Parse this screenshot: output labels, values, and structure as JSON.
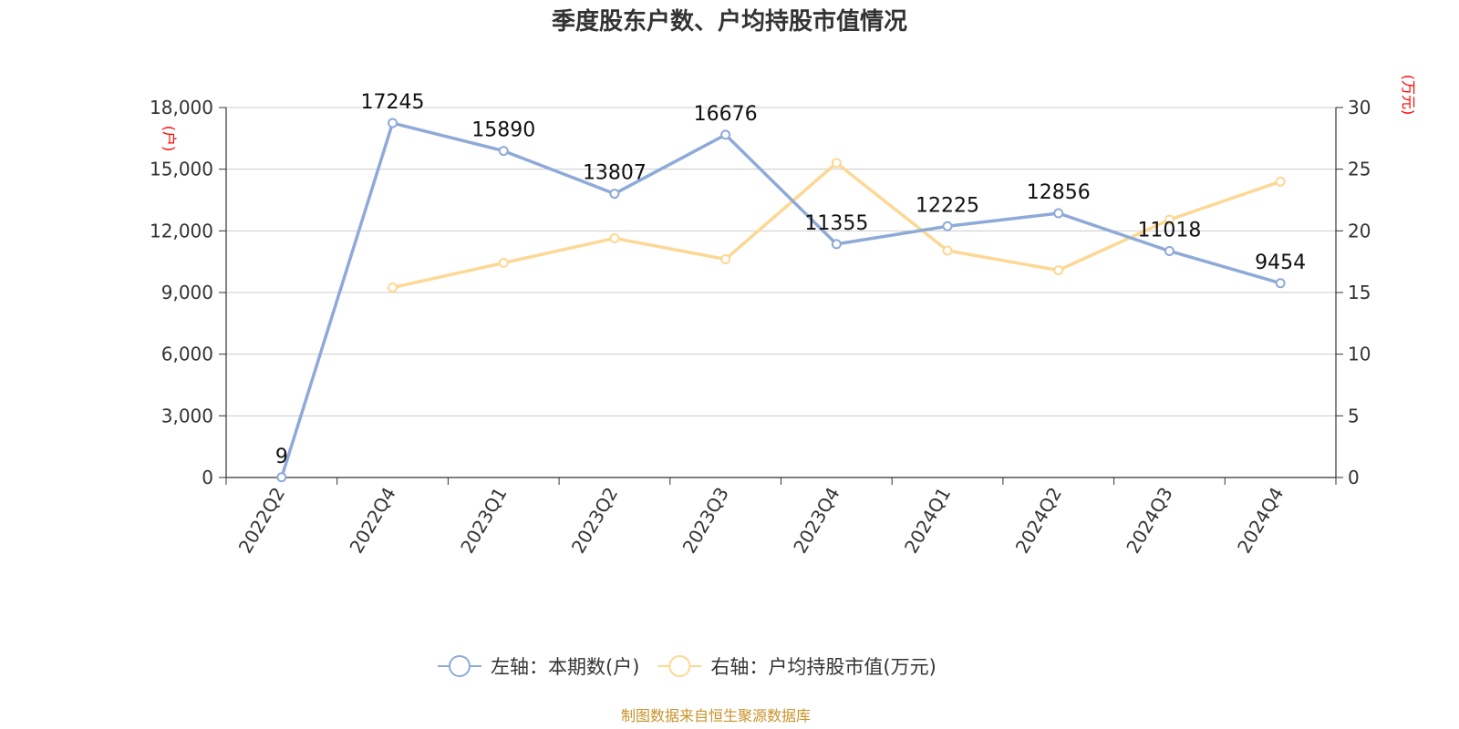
{
  "chart_data": {
    "type": "line",
    "title": "季度股东户数、户均持股市值情况",
    "categories": [
      "2022Q2",
      "2022Q4",
      "2023Q1",
      "2023Q2",
      "2023Q3",
      "2023Q4",
      "2024Q1",
      "2024Q2",
      "2024Q3",
      "2024Q4"
    ],
    "y_left": {
      "unit": "(户)",
      "ylim": [
        0,
        18000
      ],
      "ticks": [
        0,
        3000,
        6000,
        9000,
        12000,
        15000,
        18000
      ],
      "tick_labels": [
        "0",
        "3,000",
        "6,000",
        "9,000",
        "12,000",
        "15,000",
        "18,000"
      ]
    },
    "y_right": {
      "unit": "(万元)",
      "ylim": [
        0,
        30
      ],
      "ticks": [
        0,
        5,
        10,
        15,
        20,
        25,
        30
      ],
      "tick_labels": [
        "0",
        "5",
        "10",
        "15",
        "20",
        "25",
        "30"
      ]
    },
    "grid": true,
    "legend_position": "bottom",
    "series": [
      {
        "name": "左轴：本期数(户)",
        "axis": "left",
        "color": "#8eaad8",
        "values": [
          9,
          17245,
          15890,
          13807,
          16676,
          11355,
          12225,
          12856,
          11018,
          9454
        ],
        "labels": [
          "9",
          "17245",
          "15890",
          "13807",
          "16676",
          "11355",
          "12225",
          "12856",
          "11018",
          "9454"
        ]
      },
      {
        "name": "右轴：户均持股市值(万元)",
        "axis": "right",
        "color": "#fdd894",
        "values": [
          null,
          15.4,
          17.4,
          19.4,
          17.7,
          25.5,
          18.4,
          16.8,
          20.9,
          24.0
        ]
      }
    ]
  },
  "source_note": "制图数据来自恒生聚源数据库"
}
